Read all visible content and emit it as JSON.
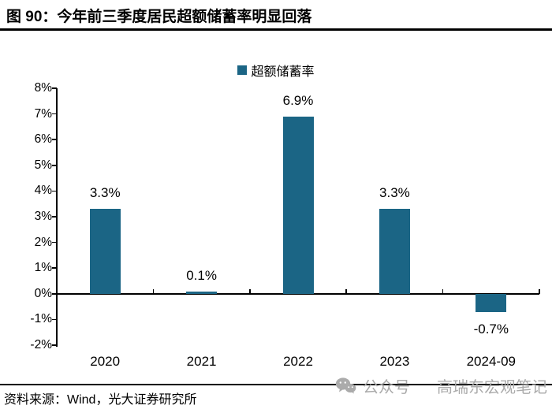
{
  "figure": {
    "title": "图 90：今年前三季度居民超额储蓄率明显回落",
    "source": "资料来源：Wind，光大证券研究所",
    "watermark": {
      "icon": "wechat-icon",
      "label": "公众号",
      "name": "高瑞东宏观笔记",
      "color": "#ABABAB"
    }
  },
  "chart_data": {
    "type": "bar",
    "title": "",
    "legend": [
      "超额储蓄率"
    ],
    "legend_position": "top-center",
    "categories": [
      "2020",
      "2021",
      "2022",
      "2023",
      "2024-09"
    ],
    "values": [
      3.3,
      0.1,
      6.9,
      3.3,
      -0.7
    ],
    "data_labels": [
      "3.3%",
      "0.1%",
      "6.9%",
      "3.3%",
      "-0.7%"
    ],
    "xlabel": "",
    "ylabel": "",
    "ylim": [
      -2,
      8
    ],
    "ytick_step": 1,
    "ytick_labels": [
      "8%",
      "7%",
      "6%",
      "5%",
      "4%",
      "3%",
      "2%",
      "1%",
      "0%",
      "-1%",
      "-2%"
    ],
    "bar_color": "#1B6585",
    "axis_color": "#000000",
    "grid": false
  }
}
